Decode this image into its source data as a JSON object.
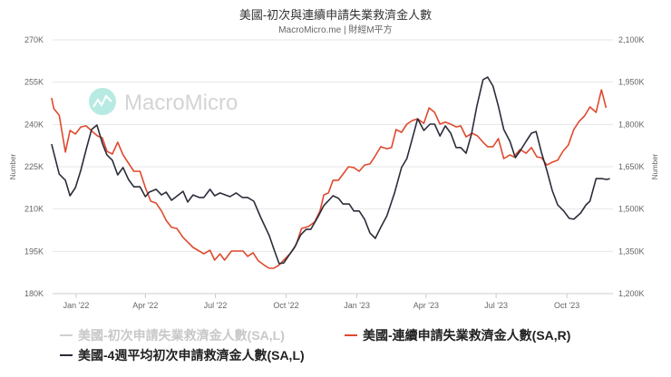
{
  "header": {
    "title": "美國-初次與連續申請失業救濟金人數",
    "subtitle": "MacroMicro.me | 財經M平方"
  },
  "watermark": "MacroMicro",
  "chart_data": {
    "type": "line",
    "title": "美國-初次與連續申請失業救濟金人數",
    "left_axis": {
      "label": "Number",
      "ticks": [
        "180K",
        "195K",
        "210K",
        "225K",
        "240K",
        "255K",
        "270K"
      ],
      "range": [
        180,
        270
      ],
      "unit": "K"
    },
    "right_axis": {
      "label": "Number",
      "ticks": [
        "1,200K",
        "1,350K",
        "1,500K",
        "1,650K",
        "1,800K",
        "1,950K",
        "2,100K"
      ],
      "range": [
        1200,
        2100
      ],
      "unit": "K"
    },
    "x_axis": {
      "ticks": [
        {
          "date": "2022-01-01",
          "label": "Jan '22"
        },
        {
          "date": "2022-04-01",
          "label": "Apr '22"
        },
        {
          "date": "2022-07-01",
          "label": "Jul '22"
        },
        {
          "date": "2022-10-01",
          "label": "Oct '22"
        },
        {
          "date": "2023-01-01",
          "label": "Jan '23"
        },
        {
          "date": "2023-04-01",
          "label": "Apr '23"
        },
        {
          "date": "2023-07-01",
          "label": "Jul '23"
        },
        {
          "date": "2023-10-01",
          "label": "Oct '23"
        }
      ]
    },
    "grid": true,
    "legend_position": "bottom",
    "series": [
      {
        "name": "美國-初次申請失業救濟金人數(SA,L)",
        "color": "#d0d0d0",
        "axis": "left",
        "hidden": true,
        "points": []
      },
      {
        "name": "美國-連續申請失業救濟金人數(SA,R)",
        "color": "#e0492e",
        "axis": "right",
        "points": [
          [
            "2021-11-30",
            1894
          ],
          [
            "2021-12-03",
            1856
          ],
          [
            "2021-12-10",
            1833
          ],
          [
            "2021-12-18",
            1702
          ],
          [
            "2021-12-24",
            1779
          ],
          [
            "2021-12-31",
            1766
          ],
          [
            "2022-01-07",
            1791
          ],
          [
            "2022-01-14",
            1795
          ],
          [
            "2022-01-22",
            1775
          ],
          [
            "2022-01-29",
            1759
          ],
          [
            "2022-02-04",
            1753
          ],
          [
            "2022-02-10",
            1705
          ],
          [
            "2022-02-17",
            1695
          ],
          [
            "2022-02-24",
            1737
          ],
          [
            "2022-03-03",
            1692
          ],
          [
            "2022-03-10",
            1663
          ],
          [
            "2022-03-17",
            1634
          ],
          [
            "2022-03-25",
            1634
          ],
          [
            "2022-04-01",
            1576
          ],
          [
            "2022-04-08",
            1528
          ],
          [
            "2022-04-15",
            1521
          ],
          [
            "2022-04-22",
            1493
          ],
          [
            "2022-04-28",
            1460
          ],
          [
            "2022-05-05",
            1435
          ],
          [
            "2022-05-12",
            1431
          ],
          [
            "2022-05-20",
            1399
          ],
          [
            "2022-05-26",
            1383
          ],
          [
            "2022-06-02",
            1364
          ],
          [
            "2022-06-10",
            1351
          ],
          [
            "2022-06-16",
            1341
          ],
          [
            "2022-06-24",
            1354
          ],
          [
            "2022-06-30",
            1319
          ],
          [
            "2022-07-07",
            1341
          ],
          [
            "2022-07-13",
            1319
          ],
          [
            "2022-07-22",
            1351
          ],
          [
            "2022-07-31",
            1351
          ],
          [
            "2022-08-06",
            1351
          ],
          [
            "2022-08-12",
            1332
          ],
          [
            "2022-08-19",
            1345
          ],
          [
            "2022-08-26",
            1316
          ],
          [
            "2022-09-03",
            1300
          ],
          [
            "2022-09-09",
            1290
          ],
          [
            "2022-09-15",
            1290
          ],
          [
            "2022-09-21",
            1300
          ],
          [
            "2022-09-28",
            1319
          ],
          [
            "2022-10-06",
            1341
          ],
          [
            "2022-10-14",
            1374
          ],
          [
            "2022-10-21",
            1431
          ],
          [
            "2022-10-30",
            1438
          ],
          [
            "2022-11-07",
            1454
          ],
          [
            "2022-11-14",
            1493
          ],
          [
            "2022-11-19",
            1550
          ],
          [
            "2022-11-25",
            1557
          ],
          [
            "2022-12-01",
            1602
          ],
          [
            "2022-12-08",
            1602
          ],
          [
            "2022-12-14",
            1624
          ],
          [
            "2022-12-21",
            1650
          ],
          [
            "2022-12-28",
            1647
          ],
          [
            "2023-01-04",
            1634
          ],
          [
            "2023-01-11",
            1656
          ],
          [
            "2023-01-18",
            1660
          ],
          [
            "2023-01-25",
            1689
          ],
          [
            "2023-02-01",
            1721
          ],
          [
            "2023-02-09",
            1714
          ],
          [
            "2023-02-15",
            1718
          ],
          [
            "2023-02-21",
            1782
          ],
          [
            "2023-02-28",
            1772
          ],
          [
            "2023-03-07",
            1801
          ],
          [
            "2023-03-14",
            1814
          ],
          [
            "2023-03-21",
            1820
          ],
          [
            "2023-03-29",
            1804
          ],
          [
            "2023-04-05",
            1859
          ],
          [
            "2023-04-12",
            1843
          ],
          [
            "2023-04-19",
            1801
          ],
          [
            "2023-04-26",
            1808
          ],
          [
            "2023-05-03",
            1801
          ],
          [
            "2023-05-10",
            1791
          ],
          [
            "2023-05-16",
            1795
          ],
          [
            "2023-05-23",
            1756
          ],
          [
            "2023-05-31",
            1769
          ],
          [
            "2023-06-07",
            1759
          ],
          [
            "2023-06-14",
            1737
          ],
          [
            "2023-06-20",
            1721
          ],
          [
            "2023-06-27",
            1721
          ],
          [
            "2023-07-04",
            1750
          ],
          [
            "2023-07-11",
            1679
          ],
          [
            "2023-07-19",
            1692
          ],
          [
            "2023-07-24",
            1685
          ],
          [
            "2023-08-01",
            1711
          ],
          [
            "2023-08-09",
            1698
          ],
          [
            "2023-08-16",
            1718
          ],
          [
            "2023-08-23",
            1685
          ],
          [
            "2023-08-29",
            1682
          ],
          [
            "2023-09-05",
            1656
          ],
          [
            "2023-09-12",
            1666
          ],
          [
            "2023-09-19",
            1673
          ],
          [
            "2023-09-26",
            1705
          ],
          [
            "2023-10-03",
            1727
          ],
          [
            "2023-10-10",
            1782
          ],
          [
            "2023-10-17",
            1811
          ],
          [
            "2023-10-24",
            1830
          ],
          [
            "2023-10-31",
            1862
          ],
          [
            "2023-11-08",
            1843
          ],
          [
            "2023-11-15",
            1923
          ],
          [
            "2023-11-21",
            1859
          ]
        ]
      },
      {
        "name": "美國-4週平均初次申請救濟金人數(SA,L)",
        "color": "#2b2d3a",
        "axis": "left",
        "points": [
          [
            "2021-11-30",
            233.0
          ],
          [
            "2021-12-10",
            222.4
          ],
          [
            "2021-12-18",
            220.2
          ],
          [
            "2021-12-24",
            214.7
          ],
          [
            "2021-12-31",
            217.6
          ],
          [
            "2022-01-07",
            223.7
          ],
          [
            "2022-01-14",
            231.1
          ],
          [
            "2022-01-21",
            238.2
          ],
          [
            "2022-01-28",
            239.8
          ],
          [
            "2022-02-04",
            233.4
          ],
          [
            "2022-02-10",
            229.2
          ],
          [
            "2022-02-17",
            227.3
          ],
          [
            "2022-02-24",
            222.1
          ],
          [
            "2022-03-03",
            224.7
          ],
          [
            "2022-03-10",
            220.5
          ],
          [
            "2022-03-17",
            217.9
          ],
          [
            "2022-03-25",
            217.9
          ],
          [
            "2022-04-01",
            214.4
          ],
          [
            "2022-04-06",
            216.0
          ],
          [
            "2022-04-15",
            217.0
          ],
          [
            "2022-04-22",
            215.0
          ],
          [
            "2022-04-28",
            216.0
          ],
          [
            "2022-05-05",
            213.1
          ],
          [
            "2022-05-20",
            216.3
          ],
          [
            "2022-05-26",
            212.5
          ],
          [
            "2022-06-02",
            215.0
          ],
          [
            "2022-06-10",
            214.1
          ],
          [
            "2022-06-16",
            214.1
          ],
          [
            "2022-06-24",
            217.0
          ],
          [
            "2022-06-30",
            214.7
          ],
          [
            "2022-07-07",
            215.7
          ],
          [
            "2022-07-20",
            214.4
          ],
          [
            "2022-07-28",
            215.7
          ],
          [
            "2022-08-05",
            214.1
          ],
          [
            "2022-08-12",
            214.1
          ],
          [
            "2022-08-20",
            212.8
          ],
          [
            "2022-08-29",
            207.0
          ],
          [
            "2022-09-09",
            200.6
          ],
          [
            "2022-09-16",
            195.1
          ],
          [
            "2022-09-22",
            190.6
          ],
          [
            "2022-09-28",
            190.9
          ],
          [
            "2022-10-06",
            194.1
          ],
          [
            "2022-10-12",
            196.4
          ],
          [
            "2022-10-20",
            200.9
          ],
          [
            "2022-10-27",
            202.8
          ],
          [
            "2022-11-02",
            202.8
          ],
          [
            "2022-11-11",
            207.0
          ],
          [
            "2022-11-19",
            211.2
          ],
          [
            "2022-12-01",
            214.7
          ],
          [
            "2022-12-08",
            213.8
          ],
          [
            "2022-12-14",
            211.8
          ],
          [
            "2022-12-22",
            211.8
          ],
          [
            "2022-12-28",
            209.3
          ],
          [
            "2023-01-04",
            209.3
          ],
          [
            "2023-01-11",
            206.4
          ],
          [
            "2023-01-18",
            201.5
          ],
          [
            "2023-01-25",
            199.6
          ],
          [
            "2023-02-01",
            203.5
          ],
          [
            "2023-02-09",
            207.6
          ],
          [
            "2023-02-19",
            215.7
          ],
          [
            "2023-02-28",
            224.7
          ],
          [
            "2023-03-07",
            227.9
          ],
          [
            "2023-03-14",
            235.0
          ],
          [
            "2023-03-21",
            242.0
          ],
          [
            "2023-03-29",
            237.9
          ],
          [
            "2023-04-06",
            240.1
          ],
          [
            "2023-04-12",
            240.1
          ],
          [
            "2023-04-19",
            235.9
          ],
          [
            "2023-04-26",
            239.5
          ],
          [
            "2023-05-03",
            236.9
          ],
          [
            "2023-05-10",
            231.8
          ],
          [
            "2023-05-16",
            231.8
          ],
          [
            "2023-05-23",
            229.8
          ],
          [
            "2023-05-30",
            236.6
          ],
          [
            "2023-06-06",
            246.5
          ],
          [
            "2023-06-14",
            255.9
          ],
          [
            "2023-06-20",
            256.8
          ],
          [
            "2023-06-27",
            253.6
          ],
          [
            "2023-07-04",
            246.5
          ],
          [
            "2023-07-11",
            238.2
          ],
          [
            "2023-07-19",
            234.0
          ],
          [
            "2023-07-26",
            228.2
          ],
          [
            "2023-08-01",
            230.5
          ],
          [
            "2023-08-09",
            234.0
          ],
          [
            "2023-08-16",
            236.9
          ],
          [
            "2023-08-22",
            237.5
          ],
          [
            "2023-08-29",
            230.1
          ],
          [
            "2023-09-05",
            223.7
          ],
          [
            "2023-09-12",
            216.6
          ],
          [
            "2023-09-19",
            211.5
          ],
          [
            "2023-09-27",
            209.3
          ],
          [
            "2023-10-04",
            206.7
          ],
          [
            "2023-10-10",
            206.4
          ],
          [
            "2023-10-19",
            208.6
          ],
          [
            "2023-10-26",
            211.5
          ],
          [
            "2023-10-31",
            212.8
          ],
          [
            "2023-11-08",
            220.8
          ],
          [
            "2023-11-15",
            220.8
          ],
          [
            "2023-11-22",
            220.5
          ],
          [
            "2023-11-26",
            220.8
          ]
        ]
      }
    ]
  }
}
